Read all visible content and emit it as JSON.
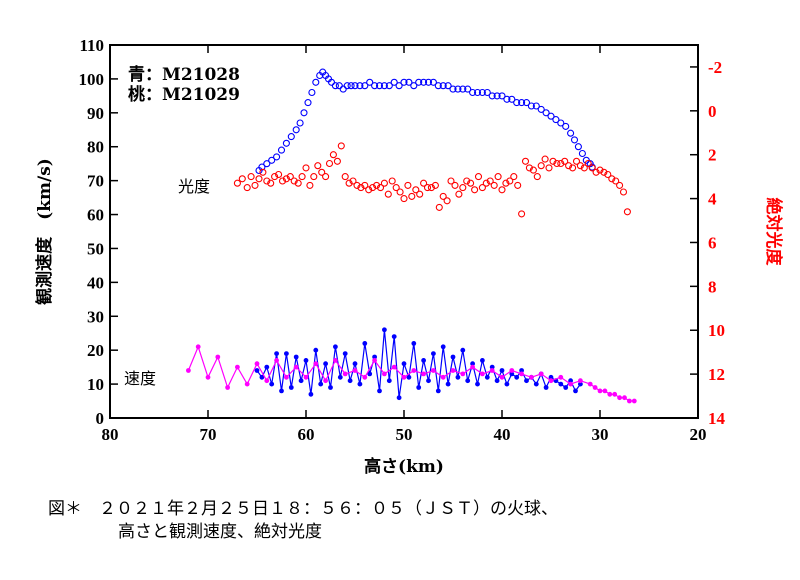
{
  "chart_data": {
    "type": "scatter",
    "title": "",
    "xlabel": "高さ(km)",
    "ylabel_left": "観測速度　(km/s)",
    "ylabel_right": "絶対光度",
    "xlim": [
      80,
      20
    ],
    "ylim_left": [
      0,
      110
    ],
    "ylim_right": [
      14,
      -3
    ],
    "x_ticks": [
      80,
      70,
      60,
      50,
      40,
      30,
      20
    ],
    "y_left_ticks": [
      0,
      10,
      20,
      30,
      40,
      50,
      60,
      70,
      80,
      90,
      100,
      110
    ],
    "y_right_ticks": [
      -2,
      0,
      2,
      4,
      6,
      8,
      10,
      12,
      14
    ],
    "legend_text": [
      "青：M21028",
      "桃：M21029"
    ],
    "annotations": {
      "luminosity_label": "光度",
      "velocity_label": "速度"
    },
    "colors": {
      "blue": "#0000ff",
      "red": "#ff0000",
      "magenta": "#ff00ff"
    },
    "series": [
      {
        "name": "M21028 観測速度(上)",
        "axis": "left",
        "color": "#0000ff",
        "marker": "open-circle",
        "x": [
          64.8,
          64.5,
          64.0,
          63.5,
          63.0,
          62.5,
          62.0,
          61.5,
          61.0,
          60.6,
          60.2,
          59.8,
          59.4,
          59.0,
          58.6,
          58.3,
          58.0,
          57.7,
          57.4,
          57.0,
          56.6,
          56.2,
          55.8,
          55.4,
          55.0,
          54.5,
          54.0,
          53.5,
          53.0,
          52.5,
          52.0,
          51.5,
          51.0,
          50.5,
          50.0,
          49.5,
          49.0,
          48.5,
          48.0,
          47.5,
          47.0,
          46.5,
          46.0,
          45.5,
          45.0,
          44.5,
          44.0,
          43.5,
          43.0,
          42.5,
          42.0,
          41.5,
          41.0,
          40.5,
          40.0,
          39.5,
          39.0,
          38.5,
          38.0,
          37.5,
          37.0,
          36.5,
          36.0,
          35.5,
          35.0,
          34.5,
          34.0,
          33.5,
          33.0,
          32.6,
          32.2,
          31.8,
          31.4,
          31.0,
          30.8
        ],
        "y": [
          73,
          74,
          75,
          76,
          77,
          79,
          81,
          83,
          85,
          87,
          90,
          93,
          96,
          99,
          101,
          102,
          101,
          100,
          99,
          98,
          98,
          97,
          98,
          98,
          98,
          98,
          98,
          99,
          98,
          98,
          98,
          98,
          99,
          98,
          99,
          99,
          98,
          99,
          99,
          99,
          99,
          98,
          98,
          98,
          97,
          97,
          97,
          97,
          96,
          96,
          96,
          96,
          95,
          95,
          95,
          94,
          94,
          93,
          93,
          93,
          92,
          92,
          91,
          90,
          89,
          88,
          87,
          86,
          84,
          82,
          80,
          78,
          76,
          75,
          74
        ]
      },
      {
        "name": "M21028 光度",
        "axis": "right",
        "color": "#ff0000",
        "marker": "open-circle",
        "x": [
          67.0,
          66.5,
          66.0,
          65.6,
          65.2,
          64.8,
          64.4,
          64.0,
          63.6,
          63.2,
          62.8,
          62.4,
          62.0,
          61.6,
          61.2,
          60.8,
          60.4,
          60.0,
          59.6,
          59.2,
          58.8,
          58.4,
          58.0,
          57.6,
          57.2,
          56.8,
          56.4,
          56.0,
          55.6,
          55.2,
          54.8,
          54.4,
          54.0,
          53.6,
          53.2,
          52.8,
          52.4,
          52.0,
          51.6,
          51.2,
          50.8,
          50.4,
          50.0,
          49.6,
          49.2,
          48.8,
          48.4,
          48.0,
          47.6,
          47.2,
          46.8,
          46.4,
          46.0,
          45.6,
          45.2,
          44.8,
          44.4,
          44.0,
          43.6,
          43.2,
          42.8,
          42.4,
          42.0,
          41.6,
          41.2,
          40.8,
          40.4,
          40.0,
          39.6,
          39.2,
          38.8,
          38.4,
          38.0,
          37.6,
          37.2,
          36.8,
          36.4,
          36.0,
          35.6,
          35.2,
          34.8,
          34.4,
          34.0,
          33.6,
          33.2,
          32.8,
          32.4,
          32.0,
          31.6,
          31.2,
          30.8,
          30.4,
          30.0,
          29.6,
          29.2,
          28.8,
          28.4,
          28.0,
          27.6,
          27.2
        ],
        "y": [
          3.3,
          3.1,
          3.5,
          3.0,
          3.4,
          3.1,
          2.8,
          3.2,
          3.3,
          3.0,
          2.9,
          3.2,
          3.1,
          3.0,
          3.2,
          3.3,
          3.0,
          2.6,
          3.4,
          3.0,
          2.5,
          2.8,
          3.0,
          2.4,
          2.0,
          2.3,
          1.6,
          3.0,
          3.3,
          3.2,
          3.4,
          3.5,
          3.4,
          3.6,
          3.5,
          3.4,
          3.5,
          3.3,
          3.8,
          3.2,
          3.5,
          3.7,
          4.0,
          3.4,
          3.9,
          3.6,
          3.8,
          3.3,
          3.5,
          3.5,
          3.4,
          4.4,
          3.9,
          4.1,
          3.2,
          3.4,
          3.8,
          3.5,
          3.2,
          3.3,
          3.6,
          3.0,
          3.5,
          3.3,
          3.2,
          3.4,
          3.0,
          3.6,
          3.3,
          3.2,
          3.0,
          3.4,
          4.7,
          2.3,
          2.6,
          2.7,
          3.0,
          2.5,
          2.2,
          2.6,
          2.3,
          2.4,
          2.4,
          2.3,
          2.5,
          2.6,
          2.3,
          2.5,
          2.6,
          2.4,
          2.6,
          2.8,
          2.7,
          2.8,
          2.9,
          3.1,
          3.2,
          3.4,
          3.7,
          4.6
        ]
      },
      {
        "name": "M21028 観測速度(下)",
        "axis": "left",
        "color": "#0000ff",
        "marker": "filled-circle",
        "x": [
          65.0,
          64.5,
          64.0,
          63.5,
          63.0,
          62.5,
          62.0,
          61.5,
          61.0,
          60.5,
          60.0,
          59.5,
          59.0,
          58.5,
          58.0,
          57.5,
          57.0,
          56.5,
          56.0,
          55.5,
          55.0,
          54.5,
          54.0,
          53.5,
          53.0,
          52.5,
          52.0,
          51.5,
          51.0,
          50.5,
          50.0,
          49.5,
          49.0,
          48.5,
          48.0,
          47.5,
          47.0,
          46.5,
          46.0,
          45.5,
          45.0,
          44.5,
          44.0,
          43.5,
          43.0,
          42.5,
          42.0,
          41.5,
          41.0,
          40.5,
          40.0,
          39.5,
          39.0,
          38.5,
          38.0,
          37.5,
          37.0,
          36.5,
          36.0,
          35.5,
          35.0,
          34.5,
          34.0,
          33.5,
          33.0,
          32.5,
          32.0
        ],
        "y": [
          14,
          12,
          15,
          10,
          19,
          8,
          19,
          9,
          18,
          11,
          17,
          7,
          20,
          10,
          16,
          9,
          21,
          12,
          19,
          11,
          16,
          10,
          22,
          13,
          18,
          8,
          26,
          11,
          24,
          6,
          16,
          12,
          22,
          9,
          17,
          11,
          19,
          8,
          21,
          10,
          18,
          12,
          20,
          11,
          16,
          10,
          17,
          12,
          15,
          11,
          14,
          10,
          13,
          12,
          14,
          11,
          12,
          10,
          13,
          9,
          12,
          11,
          10,
          9,
          11,
          8,
          10
        ]
      },
      {
        "name": "M21029 観測速度",
        "axis": "left",
        "color": "#ff00ff",
        "marker": "filled-circle",
        "x": [
          72.0,
          71.0,
          70.0,
          69.0,
          68.0,
          67.0,
          66.0,
          65.0,
          64.0,
          63.0,
          62.0,
          61.0,
          60.0,
          59.0,
          58.0,
          57.0,
          56.0,
          55.0,
          54.0,
          53.0,
          52.0,
          51.0,
          50.0,
          49.0,
          48.0,
          47.0,
          46.0,
          45.0,
          44.0,
          43.0,
          42.0,
          41.0,
          40.0,
          39.0,
          38.0,
          37.0,
          36.0,
          35.0,
          34.0,
          33.0,
          32.0,
          31.0,
          30.5,
          30.0,
          29.5,
          29.0,
          28.5,
          28.0,
          27.5,
          27.0,
          26.5
        ],
        "y": [
          14,
          21,
          12,
          18,
          9,
          15,
          10,
          16,
          11,
          17,
          12,
          15,
          12,
          16,
          11,
          17,
          13,
          14,
          12,
          17,
          13,
          15,
          12,
          14,
          13,
          14,
          12,
          14,
          13,
          15,
          13,
          14,
          12,
          14,
          13,
          12,
          13,
          11,
          12,
          10,
          11,
          10,
          9,
          8,
          8,
          7,
          7,
          6,
          6,
          5,
          5
        ]
      }
    ]
  },
  "caption": {
    "line1": "図＊　２０２１年２月２５日１８：５６：０５（ＪＳＴ）の火球、",
    "line2": "高さと観測速度、絶対光度"
  }
}
